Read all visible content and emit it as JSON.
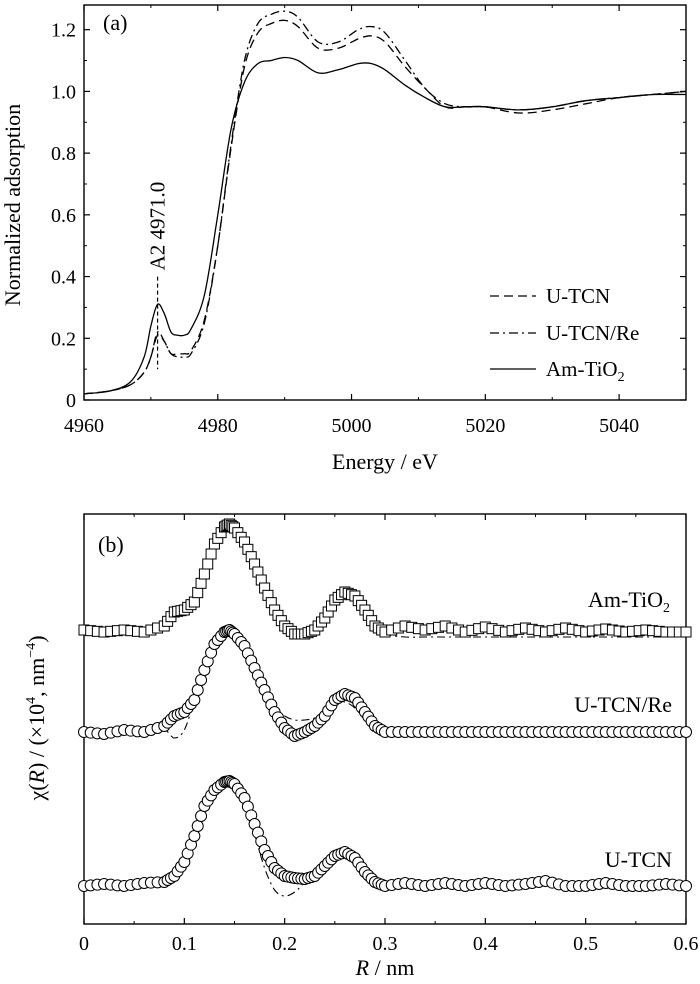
{
  "chart_data": [
    {
      "id": "a",
      "type": "line",
      "panel_label": "(a)",
      "xlabel": "Energy / eV",
      "ylabel": "Normalized adsorption",
      "xlim": [
        4960,
        5050
      ],
      "ylim": [
        0,
        1.28
      ],
      "xticks": [
        4960,
        4980,
        5000,
        5020,
        5040
      ],
      "xtick_labels": [
        "4960",
        "4980",
        "5000",
        "5020",
        "5040"
      ],
      "yticks": [
        0,
        0.2,
        0.4,
        0.6,
        0.8,
        1.0,
        1.2
      ],
      "ytick_labels": [
        "0",
        "0.2",
        "0.4",
        "0.6",
        "0.8",
        "1.0",
        "1.2"
      ],
      "grid": false,
      "legend_position": "lower-right",
      "annotation": {
        "text": "A2 4971.0",
        "x": 4971.0
      },
      "series": [
        {
          "name": "U-TCN",
          "style": "dashed",
          "x": [
            4960,
            4964,
            4967,
            4969,
            4970,
            4971,
            4972,
            4973,
            4974,
            4975,
            4976,
            4978,
            4980,
            4982,
            4984,
            4986,
            4988,
            4990,
            4992,
            4995,
            4998,
            5001,
            5003,
            5005,
            5008,
            5011,
            5014,
            5017,
            5020,
            5025,
            5030,
            5035,
            5040,
            5045,
            5050
          ],
          "y": [
            0.02,
            0.03,
            0.05,
            0.09,
            0.14,
            0.21,
            0.19,
            0.15,
            0.15,
            0.15,
            0.16,
            0.26,
            0.5,
            0.82,
            1.08,
            1.19,
            1.22,
            1.23,
            1.21,
            1.14,
            1.14,
            1.17,
            1.18,
            1.16,
            1.08,
            1.01,
            0.95,
            0.95,
            0.95,
            0.93,
            0.94,
            0.96,
            0.98,
            0.99,
            1.0
          ]
        },
        {
          "name": "U-TCN/Re",
          "style": "dash-dot",
          "x": [
            4960,
            4964,
            4967,
            4969,
            4970,
            4971,
            4972,
            4973,
            4974,
            4975,
            4976,
            4978,
            4980,
            4982,
            4984,
            4986,
            4988,
            4990,
            4992,
            4995,
            4998,
            5001,
            5003,
            5005,
            5008,
            5011,
            5014,
            5017,
            5020,
            5025,
            5030,
            5035,
            5040,
            5045,
            5050
          ],
          "y": [
            0.02,
            0.03,
            0.05,
            0.09,
            0.14,
            0.22,
            0.19,
            0.15,
            0.14,
            0.14,
            0.15,
            0.25,
            0.5,
            0.83,
            1.1,
            1.22,
            1.25,
            1.26,
            1.24,
            1.16,
            1.16,
            1.2,
            1.21,
            1.19,
            1.1,
            1.01,
            0.96,
            0.95,
            0.95,
            0.94,
            0.95,
            0.97,
            0.98,
            0.99,
            1.0
          ]
        },
        {
          "name": "Am-TiO",
          "name_sub": "2",
          "style": "solid",
          "x": [
            4960,
            4964,
            4967,
            4969,
            4970,
            4971,
            4972,
            4973,
            4974,
            4975,
            4976,
            4978,
            4980,
            4982,
            4984,
            4986,
            4988,
            4990,
            4992,
            4995,
            4998,
            5001,
            5003,
            5005,
            5008,
            5011,
            5014,
            5017,
            5020,
            5025,
            5030,
            5035,
            5040,
            5045,
            5050
          ],
          "y": [
            0.02,
            0.03,
            0.06,
            0.14,
            0.24,
            0.31,
            0.28,
            0.22,
            0.21,
            0.21,
            0.23,
            0.34,
            0.6,
            0.88,
            1.03,
            1.09,
            1.1,
            1.11,
            1.1,
            1.06,
            1.07,
            1.09,
            1.09,
            1.07,
            1.02,
            0.98,
            0.95,
            0.95,
            0.95,
            0.94,
            0.95,
            0.97,
            0.98,
            0.99,
            0.99
          ]
        }
      ]
    },
    {
      "id": "b",
      "type": "line",
      "panel_label": "(b)",
      "xlabel_italic": "R",
      "xlabel_rest": " / nm",
      "ylabel_prefix": "χ(",
      "ylabel_italic": "R",
      "ylabel_rest": ") / (×10",
      "ylabel_sup1": "4",
      "ylabel_mid": ", nm",
      "ylabel_sup2": "−4",
      "ylabel_end": ")",
      "xlim": [
        0,
        0.6
      ],
      "xticks": [
        0,
        0.1,
        0.2,
        0.3,
        0.4,
        0.5,
        0.6
      ],
      "xtick_labels": [
        "0",
        "0.1",
        "0.2",
        "0.3",
        "0.4",
        "0.5",
        "0.6"
      ],
      "grid": false,
      "series": [
        {
          "name": "Am-TiO",
          "name_sub": "2",
          "marker": "square",
          "offset": 2.1,
          "x": [
            0.0,
            0.02,
            0.04,
            0.06,
            0.08,
            0.09,
            0.1,
            0.11,
            0.12,
            0.13,
            0.14,
            0.145,
            0.15,
            0.16,
            0.17,
            0.18,
            0.19,
            0.2,
            0.21,
            0.22,
            0.23,
            0.24,
            0.25,
            0.26,
            0.27,
            0.28,
            0.29,
            0.3,
            0.32,
            0.34,
            0.36,
            0.38,
            0.4,
            0.42,
            0.44,
            0.46,
            0.48,
            0.5,
            0.52,
            0.54,
            0.56,
            0.58,
            0.6
          ],
          "y": [
            0.02,
            0.0,
            0.02,
            0.0,
            0.06,
            0.2,
            0.22,
            0.3,
            0.58,
            0.88,
            1.05,
            1.08,
            1.04,
            0.9,
            0.68,
            0.44,
            0.22,
            0.06,
            -0.02,
            -0.02,
            0.02,
            0.14,
            0.32,
            0.4,
            0.36,
            0.22,
            0.06,
            0.0,
            0.06,
            0.02,
            0.06,
            0.0,
            0.05,
            0.0,
            0.04,
            0.0,
            0.04,
            0.0,
            0.03,
            0.0,
            0.02,
            0.0,
            0.0
          ],
          "fit_y": [
            0.02,
            0.0,
            0.02,
            0.0,
            0.04,
            0.14,
            0.22,
            0.3,
            0.58,
            0.88,
            1.05,
            1.08,
            1.04,
            0.9,
            0.68,
            0.44,
            0.22,
            0.06,
            -0.02,
            -0.02,
            0.02,
            0.14,
            0.32,
            0.4,
            0.36,
            0.22,
            0.06,
            -0.02,
            -0.05,
            -0.05,
            -0.05,
            -0.05,
            -0.05,
            -0.05,
            -0.05,
            -0.05,
            -0.05,
            -0.05,
            -0.05,
            -0.05,
            -0.05,
            -0.05,
            -0.05
          ]
        },
        {
          "name": "U-TCN/Re",
          "marker": "circle",
          "offset": 1.0,
          "x": [
            0.0,
            0.02,
            0.04,
            0.06,
            0.08,
            0.09,
            0.1,
            0.11,
            0.12,
            0.13,
            0.14,
            0.145,
            0.15,
            0.16,
            0.17,
            0.18,
            0.19,
            0.2,
            0.21,
            0.22,
            0.23,
            0.24,
            0.25,
            0.26,
            0.27,
            0.28,
            0.29,
            0.3,
            0.32,
            0.34,
            0.36,
            0.38,
            0.4,
            0.42,
            0.44,
            0.46,
            0.48,
            0.5,
            0.52,
            0.54,
            0.56,
            0.58,
            0.6
          ],
          "y": [
            0.0,
            -0.02,
            0.02,
            0.0,
            0.06,
            0.16,
            0.2,
            0.32,
            0.62,
            0.88,
            1.0,
            1.02,
            0.98,
            0.86,
            0.64,
            0.42,
            0.2,
            0.04,
            -0.04,
            0.0,
            0.06,
            0.16,
            0.32,
            0.38,
            0.34,
            0.2,
            0.06,
            0.0,
            0.0,
            0.0,
            0.0,
            0.0,
            0.0,
            0.0,
            0.0,
            0.0,
            0.0,
            0.0,
            0.0,
            0.0,
            0.0,
            0.0,
            0.0
          ],
          "fit_y": [
            0.0,
            -0.02,
            0.02,
            0.0,
            0.02,
            -0.06,
            0.02,
            0.32,
            0.62,
            0.88,
            1.0,
            1.02,
            0.98,
            0.86,
            0.64,
            0.42,
            0.24,
            0.16,
            0.12,
            0.12,
            0.14,
            0.2,
            0.3,
            0.3,
            0.24,
            0.12,
            0.02,
            -0.02,
            0.0,
            0.0,
            0.0,
            0.0,
            0.0,
            0.0,
            0.0,
            0.0,
            0.0,
            0.0,
            0.0,
            0.0,
            0.0,
            0.0,
            0.0
          ]
        },
        {
          "name": "U-TCN",
          "marker": "circle",
          "offset": 0.0,
          "x": [
            0.0,
            0.02,
            0.04,
            0.06,
            0.08,
            0.09,
            0.1,
            0.11,
            0.12,
            0.13,
            0.14,
            0.145,
            0.15,
            0.16,
            0.17,
            0.18,
            0.19,
            0.2,
            0.21,
            0.22,
            0.23,
            0.24,
            0.25,
            0.26,
            0.27,
            0.28,
            0.29,
            0.3,
            0.32,
            0.34,
            0.36,
            0.38,
            0.4,
            0.42,
            0.44,
            0.46,
            0.48,
            0.5,
            0.52,
            0.54,
            0.56,
            0.58,
            0.6
          ],
          "y": [
            0.0,
            0.02,
            0.0,
            0.03,
            0.04,
            0.1,
            0.24,
            0.5,
            0.8,
            0.96,
            1.04,
            1.05,
            1.02,
            0.88,
            0.62,
            0.36,
            0.18,
            0.1,
            0.08,
            0.07,
            0.1,
            0.2,
            0.3,
            0.34,
            0.28,
            0.14,
            0.04,
            0.0,
            0.03,
            0.0,
            0.03,
            0.0,
            0.03,
            0.0,
            0.02,
            0.05,
            0.0,
            0.0,
            0.03,
            0.0,
            0.0,
            0.02,
            0.0
          ],
          "fit_y": [
            0.0,
            0.02,
            0.0,
            0.03,
            0.04,
            0.1,
            0.24,
            0.5,
            0.8,
            0.96,
            1.04,
            1.05,
            1.02,
            0.86,
            0.52,
            0.18,
            -0.04,
            -0.1,
            -0.06,
            0.04,
            0.16,
            0.26,
            0.32,
            0.34,
            0.28,
            0.14,
            0.04,
            0.0,
            0.03,
            0.0,
            0.03,
            0.0,
            0.03,
            0.0,
            0.02,
            0.05,
            0.0,
            0.0,
            0.03,
            0.0,
            0.0,
            0.02,
            0.0
          ]
        }
      ]
    }
  ]
}
